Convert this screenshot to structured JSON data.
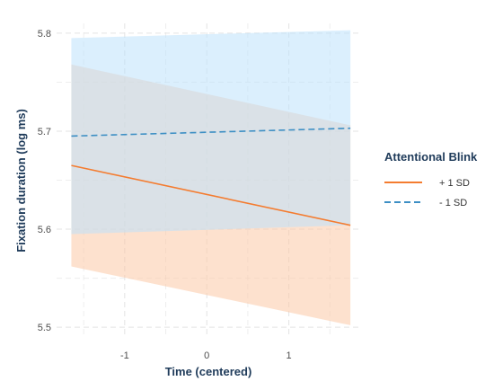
{
  "chart_data": {
    "type": "line",
    "xlabel": "Time (centered)",
    "ylabel": "Fixation duration (log ms)",
    "xlim": [
      -1.83,
      1.88
    ],
    "ylim": [
      5.49,
      5.81
    ],
    "x_ticks": [
      "-1",
      "0",
      "1"
    ],
    "x_tick_values": [
      -1,
      0,
      1
    ],
    "y_ticks": [
      "5.5",
      "5.6",
      "5.7",
      "5.8"
    ],
    "y_tick_values": [
      5.5,
      5.6,
      5.7,
      5.8
    ],
    "grid": true,
    "legend_title": "Attentional Blink",
    "legend_position": "right",
    "series": [
      {
        "name": "+ 1 SD",
        "x": [
          -1.65,
          1.75
        ],
        "y": [
          5.665,
          5.604
        ],
        "lower": [
          5.562,
          5.502
        ],
        "upper": [
          5.768,
          5.706
        ],
        "color": "#f47c30",
        "band_color": "#fbc9a6",
        "line_style": "solid"
      },
      {
        "name": "- 1 SD",
        "x": [
          -1.65,
          1.75
        ],
        "y": [
          5.695,
          5.703
        ],
        "lower": [
          5.595,
          5.604
        ],
        "upper": [
          5.795,
          5.803
        ],
        "color": "#3d8fc4",
        "band_color": "#bde2fb",
        "line_style": "dashed"
      }
    ]
  }
}
